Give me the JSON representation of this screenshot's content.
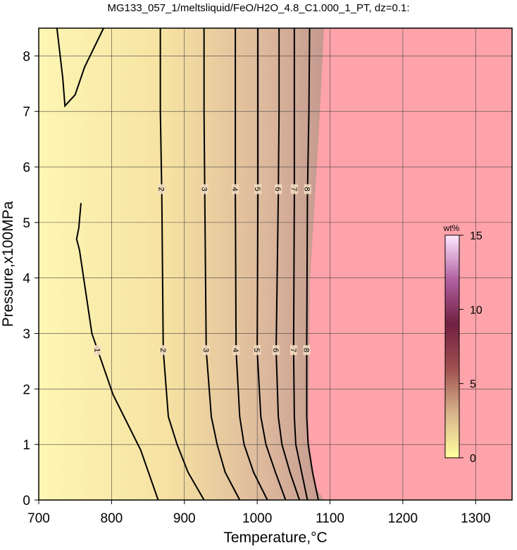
{
  "chart_data": {
    "type": "contour",
    "title": "MG133_057_1/meltsliquid/FeO/H2O_4.8_C1.000_1_PT, dz=0.1:",
    "x_label": "Temperature,°C",
    "y_label": "Pressure,x100MPa",
    "xlim": [
      700,
      1350
    ],
    "ylim": [
      0,
      8.5
    ],
    "xticks": [
      700,
      800,
      900,
      1000,
      1100,
      1200,
      1300
    ],
    "yticks": [
      0,
      1,
      2,
      3,
      4,
      5,
      6,
      7,
      8
    ],
    "grid": true,
    "line_color": "#000000",
    "colorbar": {
      "label": "wt%",
      "lim": [
        0,
        15
      ],
      "ticks": [
        0,
        5,
        10,
        15
      ]
    },
    "contours": [
      {
        "level": 1,
        "x": [
          725,
          733,
          736,
          750,
          763,
          789,
          null,
          758,
          755,
          752,
          756,
          773,
          802,
          840,
          864
        ],
        "y": [
          8.5,
          7.6,
          7.1,
          7.3,
          7.8,
          8.5,
          null,
          5.35,
          4.9,
          4.7,
          4.5,
          3,
          1.9,
          0.9,
          0
        ]
      },
      {
        "level": 2,
        "x": [
          867,
          867,
          869,
          871,
          878,
          890,
          905,
          927
        ],
        "y": [
          8.5,
          7,
          5.5,
          2.7,
          1.5,
          1,
          0.5,
          0
        ]
      },
      {
        "level": 3,
        "x": [
          927,
          927,
          928,
          930,
          937,
          945,
          956,
          976
        ],
        "y": [
          8.5,
          7,
          5.5,
          2.7,
          1.5,
          1,
          0.5,
          0
        ]
      },
      {
        "level": 4,
        "x": [
          970,
          970,
          970,
          971,
          976,
          982,
          995,
          1014
        ],
        "y": [
          8.5,
          7,
          5.5,
          2.7,
          1.5,
          1,
          0.5,
          0
        ]
      },
      {
        "level": 5,
        "x": [
          1001,
          1001,
          1001,
          1000,
          1005,
          1012,
          1025,
          1039
        ],
        "y": [
          8.5,
          7,
          5.5,
          2.7,
          1.5,
          1,
          0.5,
          0
        ]
      },
      {
        "level": 6,
        "x": [
          1030,
          1030,
          1029,
          1026,
          1029,
          1034,
          1045,
          1058
        ],
        "y": [
          8.5,
          7,
          5.5,
          2.7,
          1.5,
          1,
          0.5,
          0
        ]
      },
      {
        "level": 7,
        "x": [
          1051,
          1051,
          1051,
          1050,
          1051,
          1053,
          1061,
          1069
        ],
        "y": [
          8.5,
          7,
          5.5,
          2.7,
          1.5,
          1,
          0.5,
          0
        ]
      },
      {
        "level": 8,
        "x": [
          1072,
          1071,
          1069,
          1068,
          1068,
          1070,
          1076,
          1084
        ],
        "y": [
          8.5,
          7,
          5.5,
          2.7,
          1.5,
          1,
          0.5,
          0
        ]
      }
    ]
  }
}
